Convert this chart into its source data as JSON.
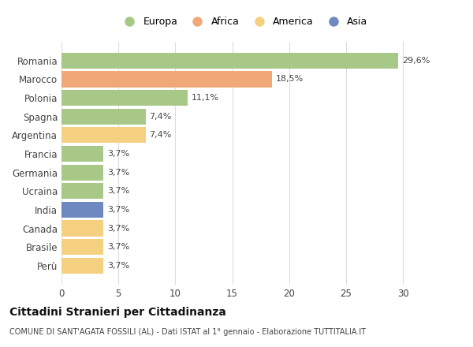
{
  "categories": [
    "Romania",
    "Marocco",
    "Polonia",
    "Spagna",
    "Argentina",
    "Francia",
    "Germania",
    "Ucraina",
    "India",
    "Canada",
    "Brasile",
    "Perù"
  ],
  "values": [
    29.6,
    18.5,
    11.1,
    7.4,
    7.4,
    3.7,
    3.7,
    3.7,
    3.7,
    3.7,
    3.7,
    3.7
  ],
  "labels": [
    "29,6%",
    "18,5%",
    "11,1%",
    "7,4%",
    "7,4%",
    "3,7%",
    "3,7%",
    "3,7%",
    "3,7%",
    "3,7%",
    "3,7%",
    "3,7%"
  ],
  "colors": [
    "#a8c887",
    "#f0a878",
    "#a8c887",
    "#a8c887",
    "#f5d080",
    "#a8c887",
    "#a8c887",
    "#a8c887",
    "#6e88c0",
    "#f5d080",
    "#f5d080",
    "#f5d080"
  ],
  "legend": [
    {
      "label": "Europa",
      "color": "#a8c887"
    },
    {
      "label": "Africa",
      "color": "#f0a878"
    },
    {
      "label": "America",
      "color": "#f5d080"
    },
    {
      "label": "Asia",
      "color": "#6e88c0"
    }
  ],
  "xlim": [
    0,
    32
  ],
  "xticks": [
    0,
    5,
    10,
    15,
    20,
    25,
    30
  ],
  "title": "Cittadini Stranieri per Cittadinanza",
  "subtitle": "COMUNE DI SANT'AGATA FOSSILI (AL) - Dati ISTAT al 1° gennaio - Elaborazione TUTTITALIA.IT",
  "bg_color": "#ffffff",
  "grid_color": "#dddddd"
}
